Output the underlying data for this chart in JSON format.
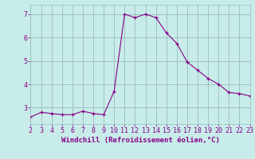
{
  "x": [
    2,
    3,
    4,
    5,
    6,
    7,
    8,
    9,
    10,
    11,
    12,
    13,
    14,
    15,
    16,
    17,
    18,
    19,
    20,
    21,
    22,
    23
  ],
  "y": [
    2.6,
    2.8,
    2.75,
    2.7,
    2.7,
    2.85,
    2.75,
    2.7,
    3.7,
    7.0,
    6.85,
    7.0,
    6.85,
    6.2,
    5.75,
    4.95,
    4.6,
    4.25,
    4.0,
    3.65,
    3.6,
    3.5
  ],
  "xlim": [
    2,
    23
  ],
  "ylim": [
    2.3,
    7.4
  ],
  "yticks": [
    3,
    4,
    5,
    6,
    7
  ],
  "xticks": [
    2,
    3,
    4,
    5,
    6,
    7,
    8,
    9,
    10,
    11,
    12,
    13,
    14,
    15,
    16,
    17,
    18,
    19,
    20,
    21,
    22,
    23
  ],
  "xlabel": "Windchill (Refroidissement éolien,°C)",
  "line_color": "#880088",
  "marker": "+",
  "bg_color": "#c8ecea",
  "grid_color": "#9abcba",
  "xlabel_color": "#880088",
  "tick_color": "#880088",
  "xlabel_fontsize": 6.5,
  "tick_fontsize": 6.0
}
